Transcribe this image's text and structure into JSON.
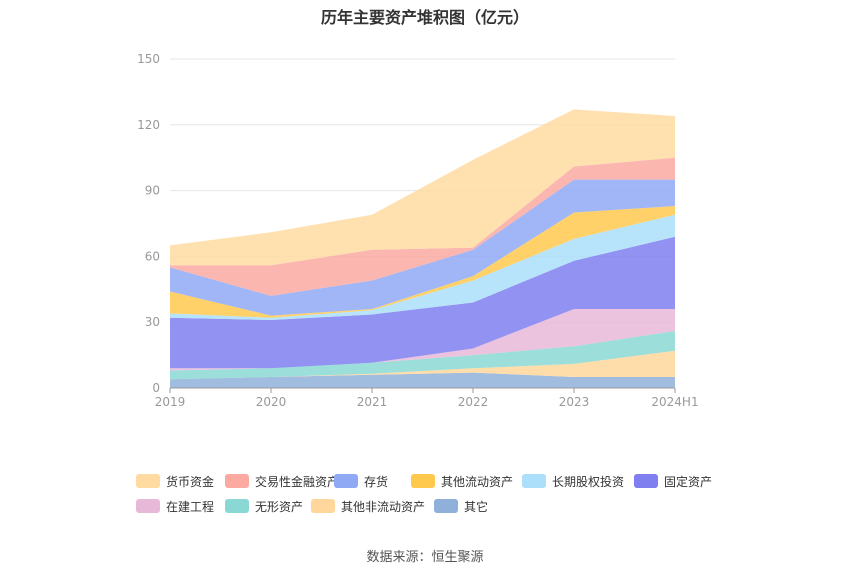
{
  "chart_title": "历年主要资产堆积图（亿元）",
  "source_text": "数据来源：恒生聚源",
  "chart_data": {
    "type": "area",
    "stacked": true,
    "title": "历年主要资产堆积图（亿元）",
    "xlabel": "",
    "ylabel": "",
    "ylim": [
      0,
      150
    ],
    "yticks": [
      0,
      30,
      60,
      90,
      120,
      150
    ],
    "grid": true,
    "legend_position": "bottom",
    "categories": [
      "2019",
      "2020",
      "2021",
      "2022",
      "2023",
      "2024H1"
    ],
    "series": [
      {
        "name": "其它",
        "color": "#8fb0d8",
        "values": [
          4,
          5,
          6,
          7,
          5,
          5
        ]
      },
      {
        "name": "其他非流动资产",
        "color": "#ffd79c",
        "values": [
          0,
          0,
          0.5,
          2,
          6,
          12
        ]
      },
      {
        "name": "无形资产",
        "color": "#8ad8d4",
        "values": [
          4,
          4,
          5,
          6,
          8,
          9
        ]
      },
      {
        "name": "在建工程",
        "color": "#e8b8d8",
        "values": [
          1,
          0,
          0,
          3,
          17,
          10
        ]
      },
      {
        "name": "固定资产",
        "color": "#7f7ff0",
        "values": [
          23,
          22,
          22,
          21,
          22,
          33
        ]
      },
      {
        "name": "长期股权投资",
        "color": "#abdffa",
        "values": [
          2,
          1,
          2,
          10,
          10,
          10
        ]
      },
      {
        "name": "其他流动资产",
        "color": "#ffc94d",
        "values": [
          10,
          1,
          0.5,
          2,
          12,
          4
        ]
      },
      {
        "name": "存货",
        "color": "#8fa9f5",
        "values": [
          11,
          9,
          13,
          12,
          15,
          12
        ]
      },
      {
        "name": "交易性金融资产",
        "color": "#fca9a2",
        "values": [
          1,
          14,
          14,
          1,
          6,
          10
        ]
      },
      {
        "name": "货币资金",
        "color": "#ffdaa1",
        "values": [
          9,
          15,
          16,
          40,
          26,
          19
        ]
      }
    ]
  },
  "legend_order": [
    "货币资金",
    "交易性金融资产",
    "存货",
    "其他流动资产",
    "长期股权投资",
    "固定资产",
    "在建工程",
    "无形资产",
    "其他非流动资产",
    "其它"
  ]
}
